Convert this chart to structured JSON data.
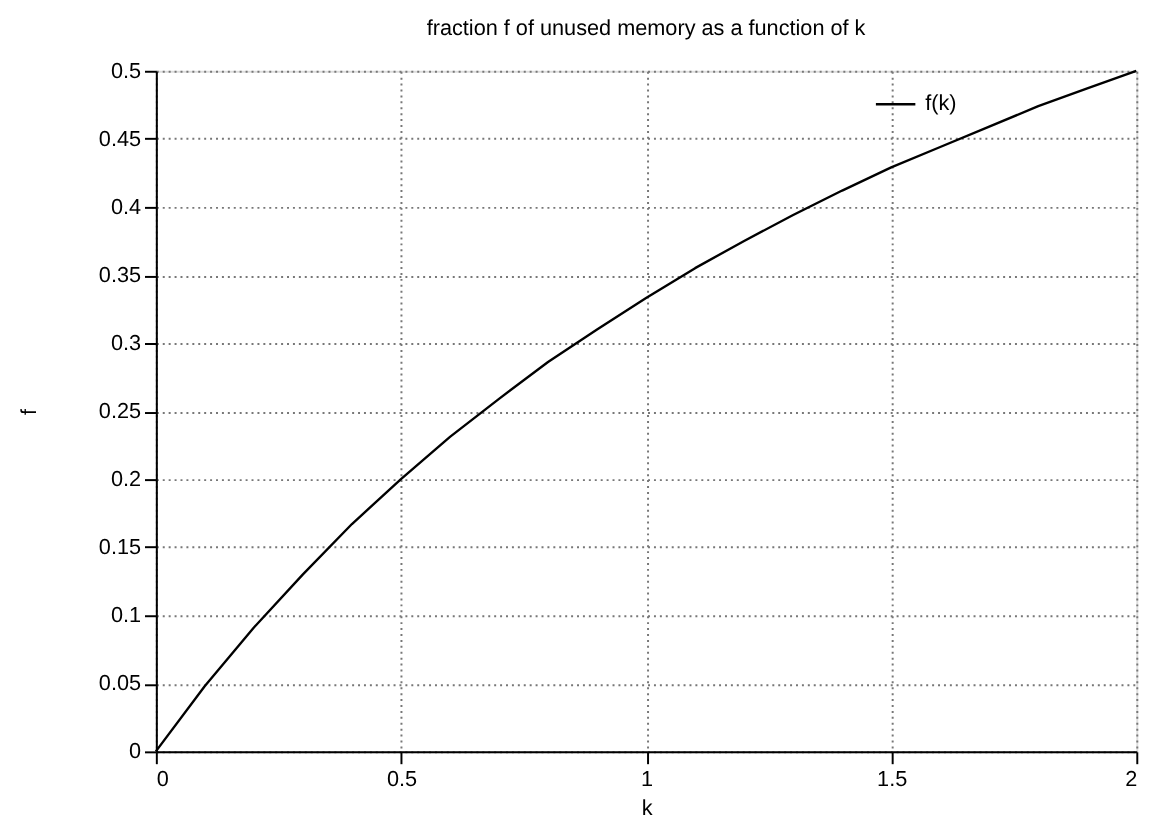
{
  "chart_data": {
    "type": "line",
    "title": "fraction f of unused memory as a function of k",
    "xlabel": "k",
    "ylabel": "f",
    "series": [
      {
        "name": "f(k)",
        "color": "#000000",
        "x": [
          0,
          0.1,
          0.2,
          0.3,
          0.4,
          0.5,
          0.6,
          0.7,
          0.8,
          0.9,
          1.0,
          1.1,
          1.2,
          1.3,
          1.4,
          1.5,
          1.6,
          1.7,
          1.8,
          1.9,
          2.0
        ],
        "values": [
          0,
          0.048,
          0.091,
          0.13,
          0.167,
          0.2,
          0.231,
          0.259,
          0.286,
          0.31,
          0.333,
          0.355,
          0.375,
          0.394,
          0.412,
          0.429,
          0.444,
          0.459,
          0.474,
          0.487,
          0.5
        ]
      }
    ],
    "xlim": [
      0,
      2
    ],
    "xticks": [
      0,
      0.5,
      1,
      1.5,
      2
    ],
    "ylim": [
      0,
      0.5
    ],
    "yticks": [
      0,
      0.05,
      0.1,
      0.15,
      0.2,
      0.25,
      0.3,
      0.35,
      0.4,
      0.45,
      0.5
    ],
    "grid": true,
    "legend": "top right",
    "marker": "none",
    "line_style": "solid"
  }
}
